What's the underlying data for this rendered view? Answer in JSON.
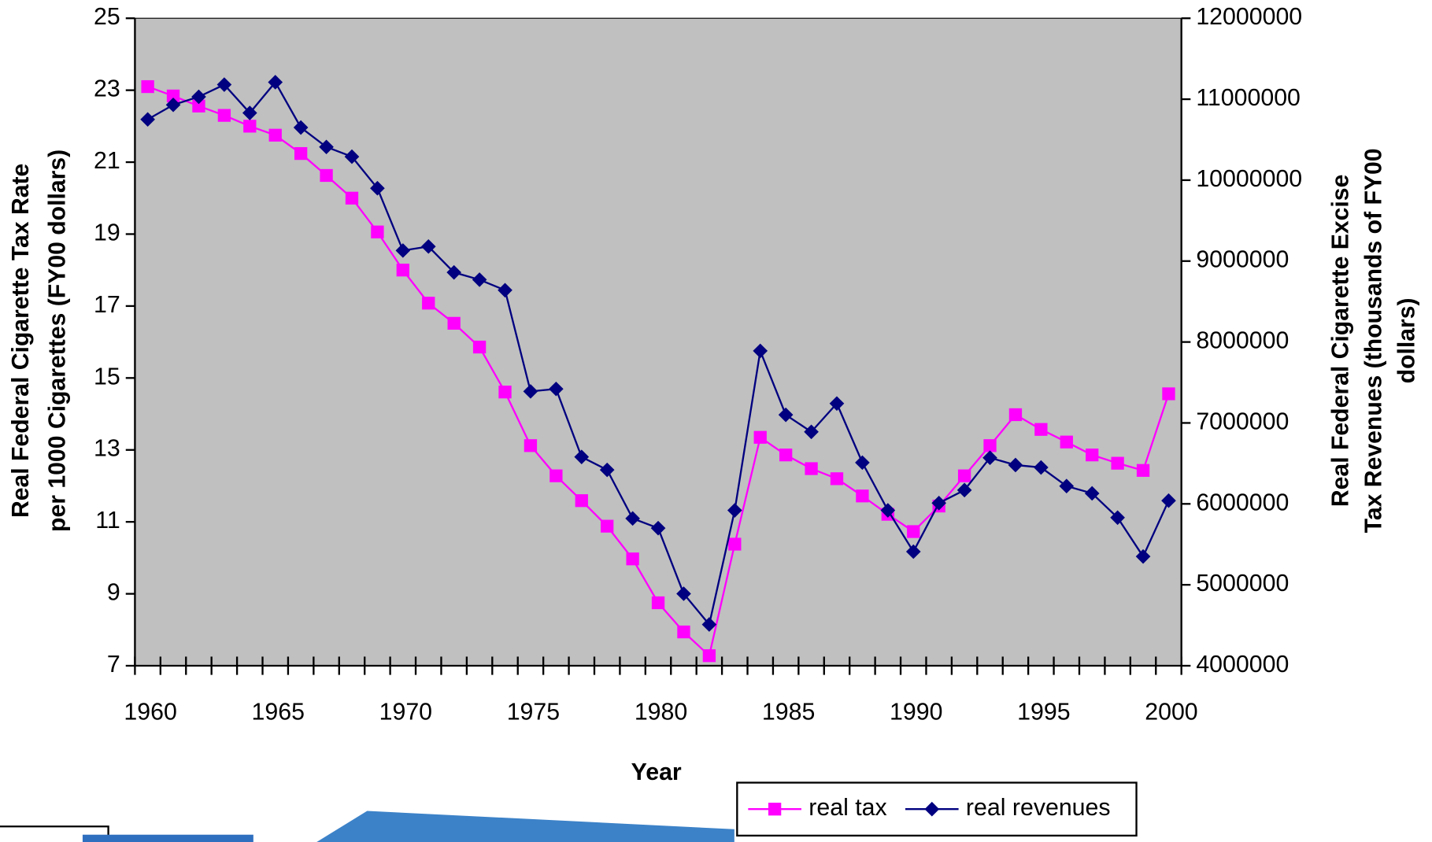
{
  "chart_data": {
    "type": "line",
    "xlabel": "Year",
    "ylabel": [
      "Real Federal Cigarette Tax Rate",
      "per 1000 Cigarettes (FY00 dollars)"
    ],
    "y2label": [
      "Real Federal Cigarette Excise",
      "Tax Revenues (thousands of FY00",
      "dollars)"
    ],
    "categories": [
      "1960",
      null,
      null,
      null,
      null,
      "1965",
      null,
      null,
      null,
      null,
      "1970",
      null,
      null,
      null,
      null,
      "1975",
      null,
      null,
      null,
      null,
      "1980",
      null,
      null,
      null,
      null,
      "1985",
      null,
      null,
      null,
      null,
      "1990",
      null,
      null,
      null,
      null,
      "1995",
      null,
      null,
      null,
      null,
      "2000"
    ],
    "ylim": [
      7,
      25
    ],
    "yticks": [
      7,
      9,
      11,
      13,
      15,
      17,
      19,
      21,
      23,
      25
    ],
    "y2lim": [
      4000000,
      12000000
    ],
    "y2ticks": [
      4000000,
      5000000,
      6000000,
      7000000,
      8000000,
      9000000,
      10000000,
      11000000,
      12000000
    ],
    "background": "#c0c0c0",
    "legend": "bottom-right",
    "series": [
      {
        "name": "real tax",
        "color": "#ff00ff",
        "marker": "square",
        "values": [
          23.1,
          22.84,
          22.56,
          22.3,
          22.0,
          21.75,
          21.24,
          20.63,
          20.0,
          19.06,
          18.0,
          17.08,
          16.52,
          15.86,
          14.61,
          13.12,
          12.28,
          11.59,
          10.88,
          9.97,
          8.75,
          7.94,
          7.28,
          10.38,
          13.35,
          12.86,
          12.48,
          12.2,
          11.72,
          11.21,
          10.73,
          11.44,
          12.28,
          13.12,
          13.98,
          13.57,
          13.22,
          12.86,
          12.63,
          12.43,
          14.56
        ]
      },
      {
        "name": "real revenues",
        "color": "#000080",
        "marker": "diamond",
        "axis": "y2",
        "values": [
          10750000,
          10930000,
          11030000,
          11180000,
          10830000,
          11210000,
          10650000,
          10410000,
          10290000,
          9900000,
          9130000,
          9180000,
          8860000,
          8770000,
          8640000,
          7390000,
          7420000,
          6580000,
          6420000,
          5820000,
          5700000,
          4890000,
          4510000,
          5920000,
          7890000,
          7100000,
          6890000,
          7240000,
          6510000,
          5920000,
          5410000,
          6010000,
          6170000,
          6570000,
          6480000,
          6450000,
          6220000,
          6130000,
          5830000,
          5350000,
          6040000
        ]
      }
    ]
  }
}
